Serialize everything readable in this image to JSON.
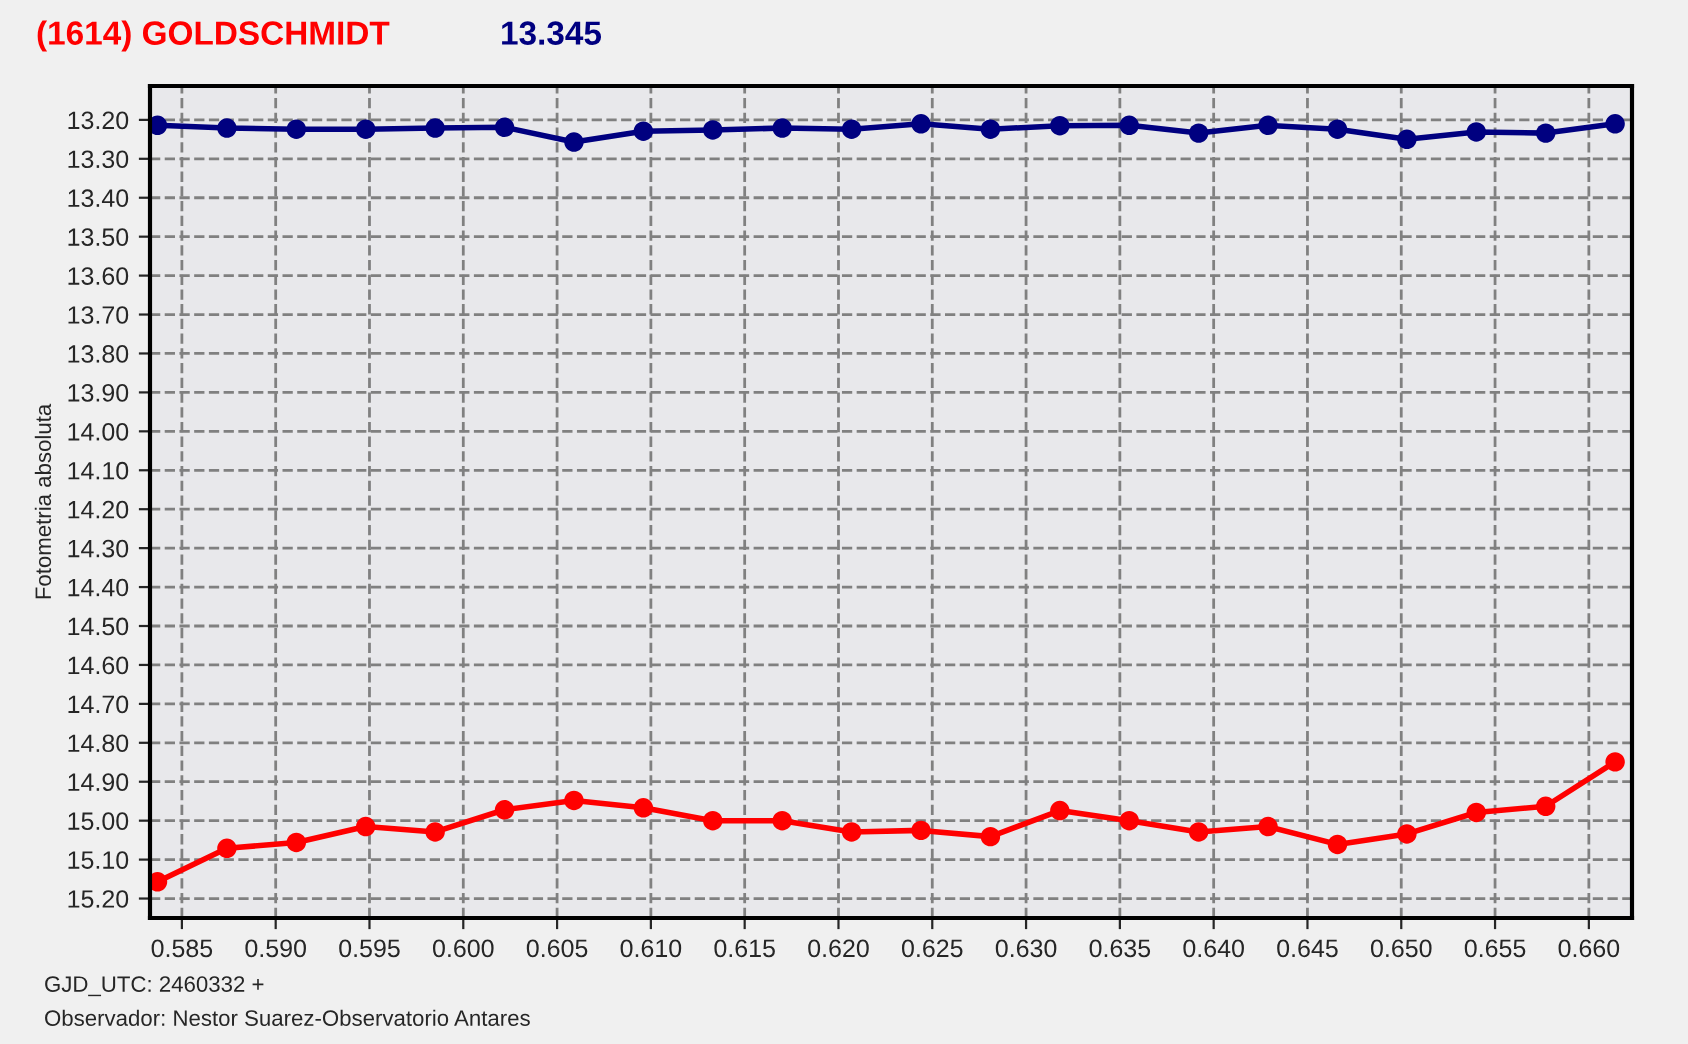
{
  "chart_data": {
    "type": "line",
    "title": "(1614) GOLDSCHMIDT",
    "subtitle": "13.345",
    "ylabel": "Fotometria absoluta",
    "annotations": [
      "GJD_UTC: 2460332 +",
      "Observador: Nestor Suarez-Observatorio Antares"
    ],
    "x": [
      0.5837,
      0.5874,
      0.5911,
      0.5948,
      0.5985,
      0.6022,
      0.6059,
      0.6096,
      0.6133,
      0.617,
      0.6207,
      0.6244,
      0.6281,
      0.6318,
      0.6355,
      0.6392,
      0.6429,
      0.6466,
      0.6503,
      0.654,
      0.6577,
      0.6614
    ],
    "series": [
      {
        "color": "#000080",
        "values": [
          13.214,
          13.221,
          13.224,
          13.224,
          13.221,
          13.219,
          13.257,
          13.229,
          13.226,
          13.221,
          13.224,
          13.21,
          13.224,
          13.215,
          13.214,
          13.234,
          13.214,
          13.224,
          13.25,
          13.231,
          13.234,
          13.21
        ]
      },
      {
        "color": "#ff0000",
        "values": [
          15.157,
          15.071,
          15.056,
          15.015,
          15.029,
          14.972,
          14.948,
          14.967,
          15.0,
          15.0,
          15.029,
          15.025,
          15.041,
          14.974,
          15.0,
          15.029,
          15.015,
          15.061,
          15.034,
          14.979,
          14.963,
          14.849
        ]
      }
    ],
    "xlim": [
      0.5833,
      0.6623
    ],
    "ylim": [
      15.25,
      13.113
    ],
    "xticks": [
      {
        "value": 0.585,
        "label": "0.585"
      },
      {
        "value": 0.59,
        "label": "0.590"
      },
      {
        "value": 0.595,
        "label": "0.595"
      },
      {
        "value": 0.6,
        "label": "0.600"
      },
      {
        "value": 0.605,
        "label": "0.605"
      },
      {
        "value": 0.61,
        "label": "0.610"
      },
      {
        "value": 0.615,
        "label": "0.615"
      },
      {
        "value": 0.62,
        "label": "0.620"
      },
      {
        "value": 0.625,
        "label": "0.625"
      },
      {
        "value": 0.63,
        "label": "0.630"
      },
      {
        "value": 0.635,
        "label": "0.635"
      },
      {
        "value": 0.64,
        "label": "0.640"
      },
      {
        "value": 0.645,
        "label": "0.645"
      },
      {
        "value": 0.65,
        "label": "0.650"
      },
      {
        "value": 0.655,
        "label": "0.655"
      },
      {
        "value": 0.66,
        "label": "0.660"
      }
    ],
    "yticks": [
      {
        "value": 13.2,
        "label": "13.20"
      },
      {
        "value": 13.3,
        "label": "13.30"
      },
      {
        "value": 13.4,
        "label": "13.40"
      },
      {
        "value": 13.5,
        "label": "13.50"
      },
      {
        "value": 13.6,
        "label": "13.60"
      },
      {
        "value": 13.7,
        "label": "13.70"
      },
      {
        "value": 13.8,
        "label": "13.80"
      },
      {
        "value": 13.9,
        "label": "13.90"
      },
      {
        "value": 14.0,
        "label": "14.00"
      },
      {
        "value": 14.1,
        "label": "14.10"
      },
      {
        "value": 14.2,
        "label": "14.20"
      },
      {
        "value": 14.3,
        "label": "14.30"
      },
      {
        "value": 14.4,
        "label": "14.40"
      },
      {
        "value": 14.5,
        "label": "14.50"
      },
      {
        "value": 14.6,
        "label": "14.60"
      },
      {
        "value": 14.7,
        "label": "14.70"
      },
      {
        "value": 14.8,
        "label": "14.80"
      },
      {
        "value": 14.9,
        "label": "14.90"
      },
      {
        "value": 15.0,
        "label": "15.00"
      },
      {
        "value": 15.1,
        "label": "15.10"
      },
      {
        "value": 15.2,
        "label": "15.20"
      }
    ],
    "grid": true,
    "marker": "circle",
    "line_style": "solid"
  }
}
